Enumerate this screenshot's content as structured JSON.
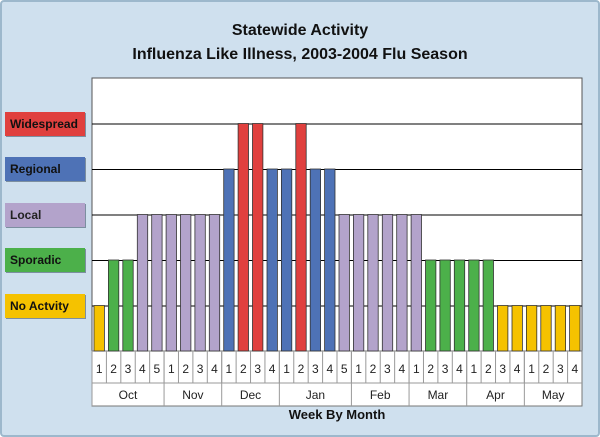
{
  "chart_data": {
    "type": "bar",
    "title": "Statewide Activity",
    "subtitle": "Influenza Like Illness, 2003-2004 Flu Season",
    "xlabel": "Week By Month",
    "levels": [
      {
        "label": "No Actvity",
        "value": 1,
        "color": "#f5c200"
      },
      {
        "label": "Sporadic",
        "value": 2,
        "color": "#4cb04a"
      },
      {
        "label": "Local",
        "value": 3,
        "color": "#b3a3cb"
      },
      {
        "label": "Regional",
        "value": 4,
        "color": "#4e72b6"
      },
      {
        "label": "Widespread",
        "value": 5,
        "color": "#e0403e"
      }
    ],
    "ylim": [
      0,
      6
    ],
    "months": [
      {
        "name": "Oct",
        "weeks": [
          1,
          2,
          3,
          4,
          5
        ],
        "values": [
          1,
          2,
          2,
          3,
          3
        ]
      },
      {
        "name": "Nov",
        "weeks": [
          1,
          2,
          3,
          4
        ],
        "values": [
          3,
          3,
          3,
          3
        ]
      },
      {
        "name": "Dec",
        "weeks": [
          1,
          2,
          3,
          4
        ],
        "values": [
          4,
          5,
          5,
          4
        ]
      },
      {
        "name": "Jan",
        "weeks": [
          1,
          2,
          3,
          4,
          5
        ],
        "values": [
          4,
          5,
          4,
          4,
          3
        ]
      },
      {
        "name": "Feb",
        "weeks": [
          1,
          2,
          3,
          4
        ],
        "values": [
          3,
          3,
          3,
          3
        ]
      },
      {
        "name": "Mar",
        "weeks": [
          1,
          2,
          3,
          4
        ],
        "values": [
          3,
          2,
          2,
          2
        ]
      },
      {
        "name": "Apr",
        "weeks": [
          1,
          2,
          3,
          4
        ],
        "values": [
          2,
          2,
          1,
          1
        ]
      },
      {
        "name": "May",
        "weeks": [
          1,
          2,
          3,
          4
        ],
        "values": [
          1,
          1,
          1,
          1
        ]
      }
    ]
  }
}
